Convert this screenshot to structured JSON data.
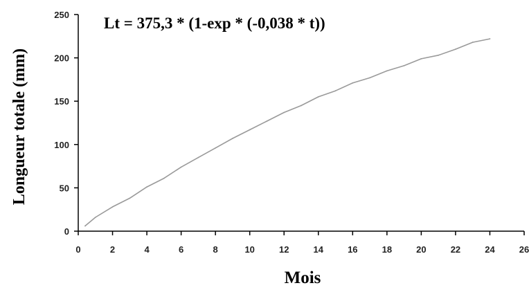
{
  "chart_data": {
    "type": "line",
    "title": "Lt = 375,3 * (1-exp * (-0,038 * t))",
    "xlabel": "Mois",
    "ylabel": "Longueur totale (mm)",
    "xlim": [
      0,
      26
    ],
    "ylim": [
      0,
      250
    ],
    "xticks": [
      "0",
      "2",
      "4",
      "6",
      "8",
      "10",
      "12",
      "14",
      "16",
      "18",
      "20",
      "22",
      "24",
      "26"
    ],
    "yticks": [
      "0",
      "50",
      "100",
      "150",
      "200",
      "250"
    ],
    "grid": false,
    "legend": "none",
    "series": [
      {
        "color": "#9a9a9a",
        "x": [
          0.4,
          1,
          2,
          3,
          4,
          5,
          6,
          7,
          8,
          9,
          10,
          11,
          12,
          13,
          14,
          15,
          16,
          17,
          18,
          19,
          20,
          21,
          22,
          23,
          24
        ],
        "y": [
          6,
          16,
          28,
          38,
          51,
          61,
          74,
          85,
          96,
          107,
          117,
          127,
          137,
          145,
          155,
          162,
          171,
          177,
          185,
          191,
          199,
          203,
          210,
          218,
          222
        ]
      }
    ]
  }
}
